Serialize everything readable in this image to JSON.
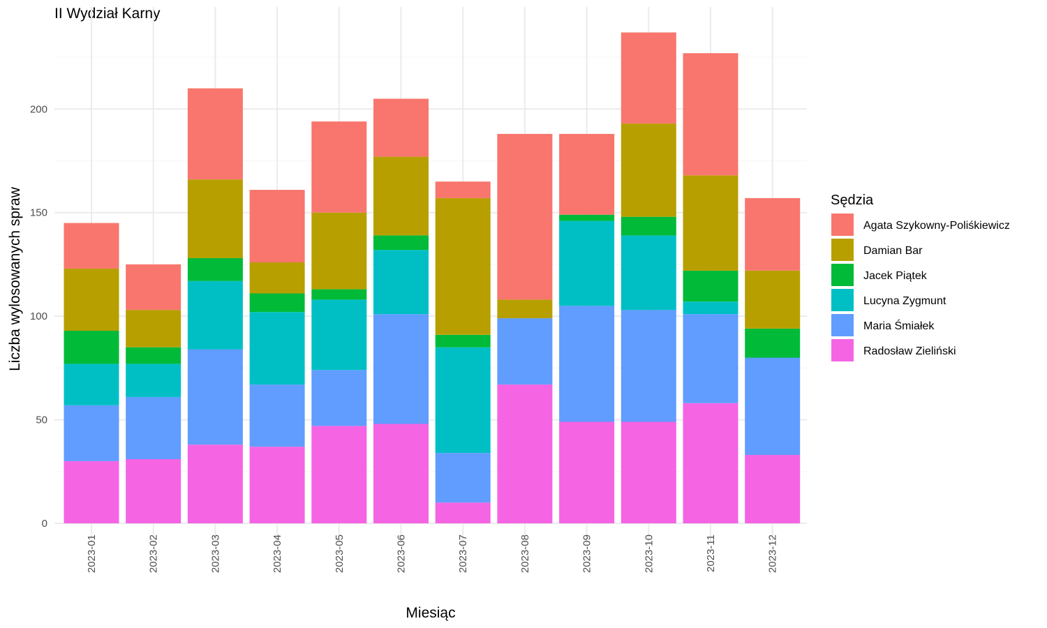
{
  "chart_data": {
    "type": "bar",
    "stacked": true,
    "title": "II Wydział Karny",
    "xlabel": "Miesiąc",
    "ylabel": "Liczba wylosowanych spraw",
    "ylim": [
      0,
      240
    ],
    "yticks": [
      0,
      50,
      100,
      150,
      200
    ],
    "grid": true,
    "legend_title": "Sędzia",
    "legend_position": "right",
    "categories": [
      "2023-01",
      "2023-02",
      "2023-03",
      "2023-04",
      "2023-05",
      "2023-06",
      "2023-07",
      "2023-08",
      "2023-09",
      "2023-10",
      "2023-11",
      "2023-12"
    ],
    "series": [
      {
        "name": "Agata Szykowny-Poliśkiewicz",
        "color": "#F8766D",
        "values": [
          22,
          22,
          44,
          35,
          44,
          28,
          8,
          80,
          39,
          44,
          59,
          35
        ]
      },
      {
        "name": "Damian Bar",
        "color": "#B79F00",
        "values": [
          30,
          18,
          38,
          15,
          37,
          38,
          66,
          9,
          0,
          45,
          46,
          28
        ]
      },
      {
        "name": "Jacek Piątek",
        "color": "#00BA38",
        "values": [
          16,
          8,
          11,
          9,
          5,
          7,
          6,
          0,
          3,
          9,
          15,
          14
        ]
      },
      {
        "name": "Lucyna Zygmunt",
        "color": "#00BFC4",
        "values": [
          20,
          16,
          33,
          35,
          34,
          31,
          51,
          0,
          41,
          36,
          6,
          0
        ]
      },
      {
        "name": "Maria Śmiałek",
        "color": "#619CFF",
        "values": [
          27,
          30,
          46,
          30,
          27,
          53,
          24,
          32,
          56,
          54,
          43,
          47
        ]
      },
      {
        "name": "Radosław Zieliński",
        "color": "#F564E3",
        "values": [
          30,
          31,
          38,
          37,
          47,
          48,
          10,
          67,
          49,
          49,
          58,
          33
        ]
      }
    ]
  }
}
